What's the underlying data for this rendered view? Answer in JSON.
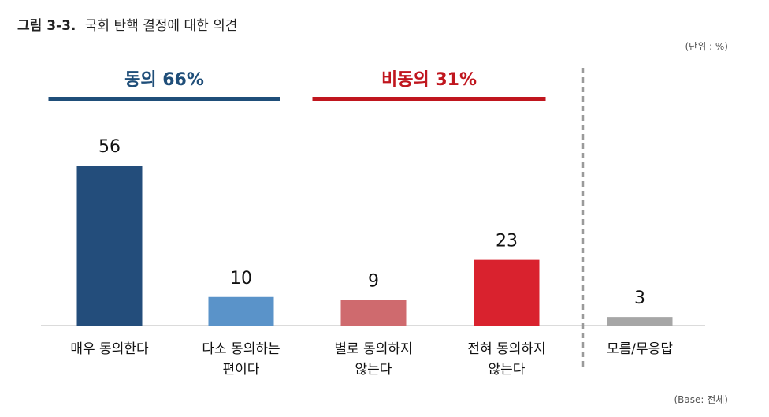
{
  "figure": {
    "number": "그림 3-3.",
    "title": "국회 탄핵 결정에 대한 의견",
    "unit_note": "(단위 : %)",
    "base_note": "(Base: 전체)"
  },
  "groups": [
    {
      "label": "동의 66%",
      "color": "#1f4e79",
      "from": 0,
      "to": 1
    },
    {
      "label": "비동의 31%",
      "color": "#c0161e",
      "from": 2,
      "to": 3
    }
  ],
  "chart_data": {
    "type": "bar",
    "categories": [
      [
        "매우 동의한다"
      ],
      [
        "다소 동의하는",
        "편이다"
      ],
      [
        "별로 동의하지",
        "않는다"
      ],
      [
        "전혀 동의하지",
        "않는다"
      ],
      [
        "모름/무응답"
      ]
    ],
    "values": [
      56,
      10,
      9,
      23,
      3
    ],
    "colors": [
      "#234d7b",
      "#5a93c9",
      "#cf6a6e",
      "#d9222e",
      "#a6a6a6"
    ],
    "ylim": [
      0,
      60
    ],
    "grid": false,
    "legend": "none"
  }
}
